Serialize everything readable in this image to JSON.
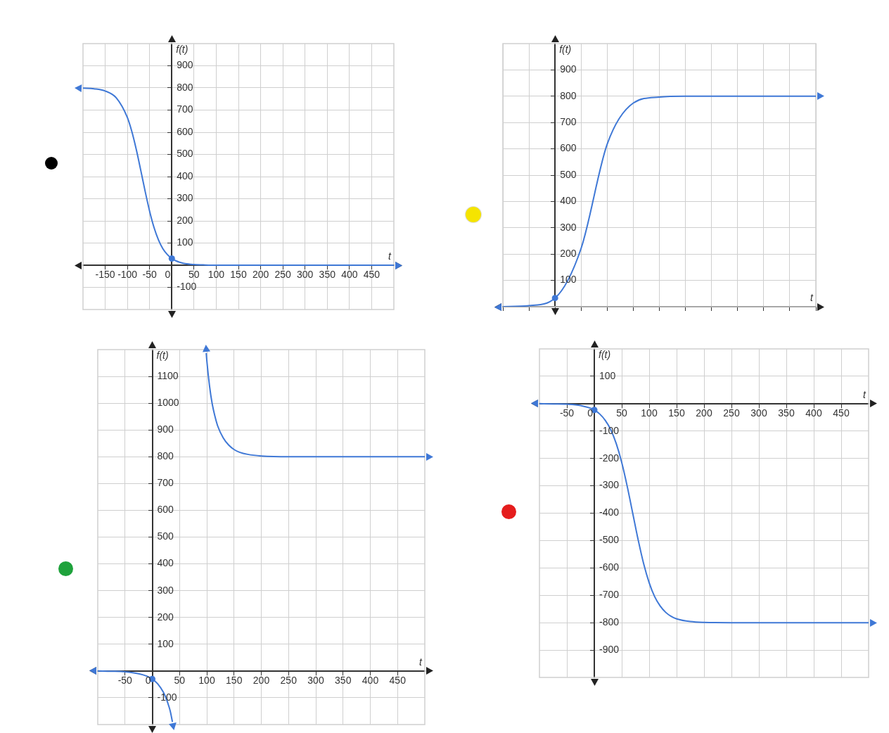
{
  "chart_data": [
    {
      "type": "line",
      "xlabel": "t",
      "ylabel": "f(t)",
      "xlim": [
        -200,
        500
      ],
      "ylim": [
        -200,
        1000
      ],
      "xticks": [
        -150,
        -100,
        -50,
        0,
        50,
        100,
        150,
        200,
        250,
        300,
        350,
        400,
        450
      ],
      "yticks": [
        -100,
        100,
        200,
        300,
        400,
        500,
        600,
        700,
        800,
        900
      ],
      "grid": true,
      "series": [
        {
          "color": "#3f78d6",
          "x": [
            -200,
            -175,
            -150,
            -125,
            -100,
            -90,
            -80,
            -70,
            -60,
            -50,
            -40,
            -30,
            -20,
            -10,
            0,
            10,
            20,
            30,
            50,
            75,
            100,
            150,
            200,
            300,
            400,
            500
          ],
          "values": [
            799,
            796,
            786,
            755,
            666,
            603,
            522,
            429,
            333,
            244,
            170,
            114,
            74,
            48,
            30,
            19,
            12,
            7,
            3,
            1,
            0,
            0,
            0,
            0,
            0,
            0
          ]
        },
        {
          "type": "scatter",
          "color": "#3f78d6",
          "x": [
            0
          ],
          "values": [
            30
          ]
        }
      ]
    },
    {
      "type": "line",
      "xlabel": "t",
      "ylabel": "f(t)",
      "categories": [
        null,
        null,
        null,
        null,
        null,
        null,
        null,
        null,
        null,
        null,
        null,
        null,
        null
      ],
      "ylim": [
        0,
        1000
      ],
      "yticks": [
        100,
        200,
        300,
        400,
        500,
        600,
        700,
        800,
        900
      ],
      "tick_labels": "y",
      "grid": true,
      "series": [
        {
          "color": "#3f78d6",
          "values": [
            0,
            4,
            33,
            222,
            618,
            774,
            797,
            800,
            800,
            800,
            800,
            800,
            800
          ]
        },
        {
          "type": "scatter",
          "color": "#3f78d6",
          "values": [
            null,
            null,
            33,
            null,
            null,
            null,
            null,
            null,
            null,
            null,
            null,
            null,
            null
          ]
        }
      ]
    },
    {
      "type": "line",
      "xlabel": "t",
      "ylabel": "f(t)",
      "xlim": [
        -100,
        500
      ],
      "ylim": [
        -200,
        1200
      ],
      "xticks": [
        -50,
        0,
        50,
        100,
        150,
        200,
        250,
        300,
        350,
        400,
        450
      ],
      "yticks": [
        -100,
        100,
        200,
        300,
        400,
        500,
        600,
        700,
        800,
        900,
        1000,
        1100
      ],
      "grid": true,
      "series": [
        {
          "color": "#3f78d6",
          "x": [
            -100,
            -75,
            -50,
            -25,
            -10,
            0,
            10,
            20,
            25,
            30,
            33,
            37,
            74,
            99,
            100,
            105,
            110,
            115,
            120,
            130,
            140,
            150,
            160,
            175,
            200,
            250,
            300,
            400,
            500
          ],
          "values": [
            0,
            -1,
            -3,
            -10,
            -19,
            -30,
            -48,
            -78,
            -100,
            -129,
            -150,
            -190,
            null,
            1187,
            1161,
            1065,
            997,
            951,
            915,
            871,
            844,
            827,
            817,
            809,
            803,
            800,
            800,
            800,
            800
          ]
        },
        {
          "type": "scatter",
          "color": "#3f78d6",
          "x": [
            0
          ],
          "values": [
            -30
          ]
        }
      ]
    },
    {
      "type": "line",
      "xlabel": "t",
      "ylabel": "f(t)",
      "xlim": [
        -100,
        500
      ],
      "ylim": [
        -1000,
        200
      ],
      "xticks": [
        -50,
        0,
        50,
        100,
        150,
        200,
        250,
        300,
        350,
        400,
        450
      ],
      "yticks": [
        -900,
        -800,
        -700,
        -600,
        -500,
        -400,
        -300,
        -200,
        -100,
        100
      ],
      "grid": true,
      "series": [
        {
          "color": "#3f78d6",
          "x": [
            -100,
            -75,
            -50,
            -25,
            0,
            10,
            20,
            30,
            40,
            50,
            60,
            70,
            80,
            90,
            100,
            110,
            120,
            130,
            140,
            150,
            175,
            200,
            250,
            300,
            400,
            500
          ],
          "values": [
            0,
            -1,
            -2,
            -7,
            -23,
            -38,
            -61,
            -95,
            -146,
            -215,
            -302,
            -400,
            -498,
            -585,
            -654,
            -705,
            -739,
            -762,
            -777,
            -786,
            -796,
            -799,
            -800,
            -800,
            -800,
            -800
          ]
        },
        {
          "type": "scatter",
          "color": "#3f78d6",
          "x": [
            0
          ],
          "values": [
            -23
          ]
        }
      ]
    }
  ]
}
